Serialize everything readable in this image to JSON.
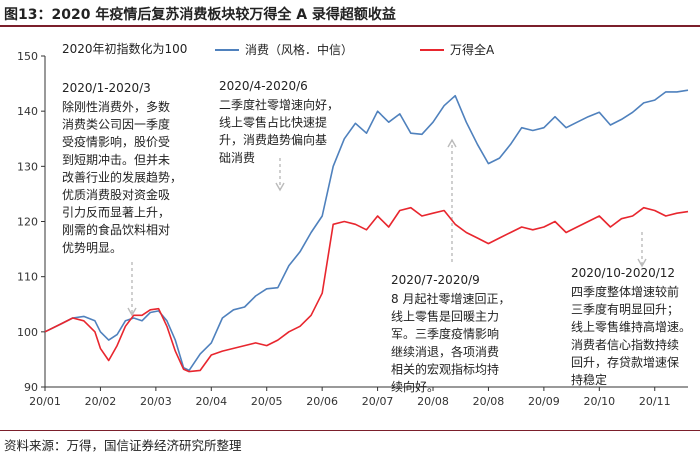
{
  "header": {
    "title": "图13：2020 年疫情后复苏消费板块较万得全 A 录得超额收益"
  },
  "footer": {
    "source": "资料来源：万得，国信证券经济研究所整理"
  },
  "chart_data": {
    "type": "line",
    "subtitle": "2020年初指数化为100",
    "x_ticks": [
      "20/01",
      "20/02",
      "20/03",
      "20/04",
      "20/05",
      "20/06",
      "20/07",
      "20/08",
      "20/08",
      "20/09",
      "20/10",
      "20/11"
    ],
    "ylim": [
      90,
      150
    ],
    "y_ticks": [
      90,
      100,
      110,
      120,
      130,
      140,
      150
    ],
    "grid": false,
    "legend_position": "top",
    "series": [
      {
        "name": "消费（风格．中信）",
        "color": "#4f81bd",
        "x": [
          0,
          0.3,
          0.5,
          0.7,
          0.9,
          1.0,
          1.15,
          1.3,
          1.45,
          1.6,
          1.75,
          1.9,
          2.05,
          2.2,
          2.35,
          2.5,
          2.6,
          2.8,
          3.0,
          3.2,
          3.4,
          3.6,
          3.8,
          4.0,
          4.2,
          4.4,
          4.6,
          4.8,
          5.0,
          5.2,
          5.4,
          5.6,
          5.8,
          6.0,
          6.2,
          6.4,
          6.6,
          6.8,
          7.0,
          7.2,
          7.4,
          7.6,
          7.8,
          8.0,
          8.2,
          8.4,
          8.6,
          8.8,
          9.0,
          9.2,
          9.4,
          9.6,
          9.8,
          10.0,
          10.2,
          10.4,
          10.6,
          10.8,
          11.0,
          11.2,
          11.4,
          11.6
        ],
        "y": [
          100,
          101.5,
          102.5,
          102.8,
          102,
          100,
          98.5,
          99.5,
          102,
          102.5,
          102,
          103.5,
          103.8,
          102,
          98.5,
          93.5,
          93,
          96,
          98,
          102.5,
          104,
          104.5,
          106.5,
          107.8,
          108,
          112,
          114.5,
          118,
          121,
          130,
          135,
          137.8,
          136,
          140,
          138,
          139.5,
          136,
          135.8,
          138,
          141,
          142.8,
          138,
          134,
          130.5,
          131.5,
          134,
          137,
          136.5,
          137,
          139,
          137,
          138,
          139,
          139.8,
          137.5,
          138.5,
          139.8,
          141.5,
          142,
          143.5,
          143.5,
          143.8
        ]
      },
      {
        "name": "万得全A",
        "color": "#e8262e",
        "x": [
          0,
          0.3,
          0.5,
          0.7,
          0.9,
          1.0,
          1.15,
          1.3,
          1.45,
          1.6,
          1.75,
          1.9,
          2.05,
          2.2,
          2.35,
          2.5,
          2.6,
          2.8,
          3.0,
          3.2,
          3.4,
          3.6,
          3.8,
          4.0,
          4.2,
          4.4,
          4.6,
          4.8,
          5.0,
          5.2,
          5.4,
          5.6,
          5.8,
          6.0,
          6.2,
          6.4,
          6.6,
          6.8,
          7.0,
          7.2,
          7.4,
          7.6,
          7.8,
          8.0,
          8.2,
          8.4,
          8.6,
          8.8,
          9.0,
          9.2,
          9.4,
          9.6,
          9.8,
          10.0,
          10.2,
          10.4,
          10.6,
          10.8,
          11.0,
          11.2,
          11.4,
          11.6
        ],
        "y": [
          100,
          101.5,
          102.5,
          102,
          100,
          97,
          94.8,
          97.5,
          101,
          103,
          103,
          104,
          104.2,
          101,
          96.5,
          93.2,
          92.8,
          93,
          95.8,
          96.5,
          97,
          97.5,
          98,
          97.5,
          98.5,
          100,
          101,
          103,
          107,
          119.5,
          120,
          119.5,
          118.5,
          121,
          119,
          122,
          122.5,
          121,
          121.5,
          122,
          119.5,
          118,
          117,
          116,
          117,
          118,
          119,
          118.5,
          119,
          120,
          118,
          119,
          120,
          121,
          119,
          120.5,
          121,
          122.5,
          122,
          121,
          121.5,
          121.8
        ]
      }
    ],
    "annotations": [
      {
        "title": "2020/1-2020/3",
        "lines": [
          "除刚性消费外，多数",
          "消费类公司因一季度",
          "受疫情影响，股价受",
          "到短期冲击。但并未",
          "改善行业的发展趋势，",
          "优质消费股对资金吸",
          "引力反而显著上升，",
          "刚需的食品饮料相对",
          "优势明显。"
        ]
      },
      {
        "title": "2020/4-2020/6",
        "lines": [
          "二季度社零增速向好，",
          "线上零售占比快速提",
          "升，消费趋势偏向基",
          "础消费"
        ]
      },
      {
        "title": "2020/7-2020/9",
        "lines": [
          "8 月起社零增速回正，",
          "线上零售是回暖主力",
          "军。三季度疫情影响",
          "继续消退，各项消费",
          "相关的宏观指标均持",
          "续向好。"
        ]
      },
      {
        "title": "2020/10-2020/12",
        "lines": [
          "四季度整体增速较前",
          "三季度有明显回升；",
          "线上零售维持高增速。",
          "消费者信心指数持续",
          "回升，存贷款增速保",
          "持稳定"
        ]
      }
    ]
  }
}
